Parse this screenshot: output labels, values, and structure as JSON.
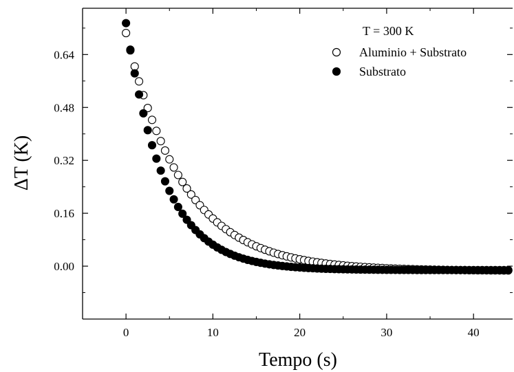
{
  "chart_data": {
    "type": "scatter",
    "title": "",
    "xlabel": "Tempo (s)",
    "ylabel": "ΔT (K)",
    "xlim": [
      -5,
      44.5
    ],
    "ylim": [
      -0.16,
      0.78
    ],
    "x_ticks": [
      0,
      10,
      20,
      30,
      40
    ],
    "y_ticks": [
      0.0,
      0.16,
      0.32,
      0.48,
      0.64
    ],
    "y_tick_labels": [
      "0.00",
      "0.16",
      "0.32",
      "0.48",
      "0.64"
    ],
    "grid": false,
    "legend": {
      "placement": "top-right",
      "header": "T = 300 K"
    },
    "series": [
      {
        "name": "Aluminio + Substrato",
        "marker": "open-circle",
        "color": "#000000",
        "model": {
          "a0": 0.705,
          "tau": 6.6,
          "offset": -0.014,
          "dx": 0.5,
          "count": 89
        }
      },
      {
        "name": "Substrato",
        "marker": "filled-circle",
        "color": "#000000",
        "model": {
          "a0": 0.735,
          "tau": 4.4,
          "offset": -0.012,
          "dx": 0.5,
          "count": 89
        }
      }
    ]
  }
}
